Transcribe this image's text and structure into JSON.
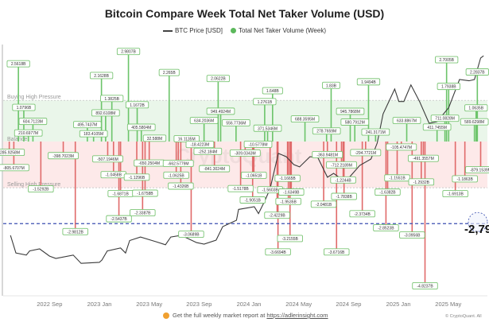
{
  "chart_data": {
    "type": "bar",
    "title": "Bitcoin Compare Week Total Net Taker Volume (USD)",
    "legend": [
      "BTC Price [USD]",
      "Total Net Taker Volume (Week)"
    ],
    "legend_placement": "top-center",
    "x_ticks": [
      "2022 Sep",
      "2023 Jan",
      "2023 May",
      "2023 Sep",
      "2024 Jan",
      "2024 May",
      "2024 Sep",
      "2025 Jan",
      "2025 May"
    ],
    "zones": {
      "buying": "Buying High Pressure",
      "balance": "Balance",
      "selling": "Selling High Pressure",
      "buying_threshold_b": 1.4,
      "selling_threshold_b": -1.57
    },
    "reference_line_b": -2.79,
    "reference_label": "-2,79",
    "colors": {
      "positive": "#6cc46a",
      "negative": "#e06a6a",
      "price": "#3a3a3a",
      "reference": "#3b4fb0",
      "buy_zone": "#eaf6ea",
      "sell_zone": "#fde9e9",
      "label_border": "#7cc576"
    },
    "watermark": "CryptoQuant",
    "volume_annotations": [
      {
        "date": "2022-05-24",
        "value": -0.2859,
        "label": "-285.9258M"
      },
      {
        "date": "2022-06-05",
        "value": -0.8057,
        "label": "-805.6707M"
      },
      {
        "date": "2022-06-16",
        "value": 2.5618,
        "label": "2.5618B"
      },
      {
        "date": "2022-06-29",
        "value": 1.0796,
        "label": "1.0796B"
      },
      {
        "date": "2022-07-10",
        "value": 0.2107,
        "label": "210.6977M"
      },
      {
        "date": "2022-07-21",
        "value": 0.6047,
        "label": "604.7123M"
      },
      {
        "date": "2022-08-10",
        "value": -1.5292,
        "label": "-1.5292B"
      },
      {
        "date": "2022-10-04",
        "value": -0.3987,
        "label": "-398.7023M"
      },
      {
        "date": "2022-11-03",
        "value": -2.9812,
        "label": "-2.9812B"
      },
      {
        "date": "2022-12-02",
        "value": 0.4957,
        "label": "495.7437M"
      },
      {
        "date": "2022-12-17",
        "value": 0.1834,
        "label": "183.4105M"
      },
      {
        "date": "2023-01-06",
        "value": 2.1628,
        "label": "2.1628B"
      },
      {
        "date": "2023-01-16",
        "value": 0.8926,
        "label": "892.6108M"
      },
      {
        "date": "2023-01-21",
        "value": -0.5072,
        "label": "-507.1946M"
      },
      {
        "date": "2023-02-01",
        "value": 1.3825,
        "label": "1.3825B"
      },
      {
        "date": "2023-02-05",
        "value": -1.0458,
        "label": "-1.0458B"
      },
      {
        "date": "2023-02-18",
        "value": -2.5437,
        "label": "-2.5437B"
      },
      {
        "date": "2023-02-22",
        "value": -1.6871,
        "label": "-1.6871B"
      },
      {
        "date": "2023-03-11",
        "value": 2.9807,
        "label": "2.9807B"
      },
      {
        "date": "2023-04-01",
        "value": -1.1296,
        "label": "-1.1296B"
      },
      {
        "date": "2023-04-02",
        "value": 1.1672,
        "label": "1.1672B"
      },
      {
        "date": "2023-04-12",
        "value": 0.4056,
        "label": "405.5804M"
      },
      {
        "date": "2023-04-15",
        "value": -2.3387,
        "label": "-2.3387B"
      },
      {
        "date": "2023-04-21",
        "value": -1.6758,
        "label": "-1.6758B"
      },
      {
        "date": "2023-05-01",
        "value": -0.6503,
        "label": "-650.2504M"
      },
      {
        "date": "2023-05-14",
        "value": 0.0326,
        "label": "32.588M"
      },
      {
        "date": "2023-06-19",
        "value": 2.265,
        "label": "2.265B"
      },
      {
        "date": "2023-07-06",
        "value": -1.0625,
        "label": "-1.0625B"
      },
      {
        "date": "2023-07-11",
        "value": -0.6626,
        "label": "-662.5779M"
      },
      {
        "date": "2023-07-17",
        "value": -1.4326,
        "label": "-1.4326B"
      },
      {
        "date": "2023-08-01",
        "value": 0.0161,
        "label": "16.1135M"
      },
      {
        "date": "2023-08-12",
        "value": -3.0689,
        "label": "-3.0689B"
      },
      {
        "date": "2023-09-03",
        "value": -0.0184,
        "label": "-18.4223M"
      },
      {
        "date": "2023-09-13",
        "value": 0.6342,
        "label": "634.2036M"
      },
      {
        "date": "2023-09-22",
        "value": -0.2522,
        "label": "-252.184M"
      },
      {
        "date": "2023-10-08",
        "value": -0.8413,
        "label": "-841.3024M"
      },
      {
        "date": "2023-10-17",
        "value": 2.0622,
        "label": "2.0622B"
      },
      {
        "date": "2023-10-23",
        "value": 0.9495,
        "label": "949.4924M"
      },
      {
        "date": "2023-11-30",
        "value": 0.5568,
        "label": "556.7736M"
      },
      {
        "date": "2023-12-11",
        "value": -1.5178,
        "label": "-1.5178B"
      },
      {
        "date": "2023-12-22",
        "value": -0.309,
        "label": "-309.0343M"
      },
      {
        "date": "2024-01-10",
        "value": -1.9051,
        "label": "-1.9051B"
      },
      {
        "date": "2024-01-13",
        "value": -1.0651,
        "label": "-1.0651B"
      },
      {
        "date": "2024-01-23",
        "value": -0.0106,
        "label": "-10.5778M"
      },
      {
        "date": "2024-02-09",
        "value": 1.2761,
        "label": "1.2761B"
      },
      {
        "date": "2024-02-16",
        "value": 0.3715,
        "label": "371.5346M"
      },
      {
        "date": "2024-02-22",
        "value": -1.5603,
        "label": "-1.5603B"
      },
      {
        "date": "2024-02-28",
        "value": 1.648,
        "label": "1.648B"
      },
      {
        "date": "2024-03-09",
        "value": -2.4229,
        "label": "-2.4229B"
      },
      {
        "date": "2024-03-11",
        "value": -3.6694,
        "label": "-3.6694B"
      },
      {
        "date": "2024-04-04",
        "value": -1.1665,
        "label": "-1.1665B"
      },
      {
        "date": "2024-04-06",
        "value": -1.9535,
        "label": "-1.9535B"
      },
      {
        "date": "2024-04-10",
        "value": -3.2155,
        "label": "-3.2155B"
      },
      {
        "date": "2024-04-13",
        "value": -1.6349,
        "label": "-1.6349B"
      },
      {
        "date": "2024-05-16",
        "value": 0.6884,
        "label": "688.3595M"
      },
      {
        "date": "2024-07-01",
        "value": -2.0481,
        "label": "-2.0481B"
      },
      {
        "date": "2024-07-08",
        "value": 0.2788,
        "label": "278.7659M"
      },
      {
        "date": "2024-07-10",
        "value": -0.3639,
        "label": "-363.9481M"
      },
      {
        "date": "2024-07-19",
        "value": 1.83,
        "label": "1.83B"
      },
      {
        "date": "2024-08-02",
        "value": -3.6716,
        "label": "-3.6716B"
      },
      {
        "date": "2024-08-14",
        "value": -0.7122,
        "label": "-712.2189M"
      },
      {
        "date": "2024-08-18",
        "value": -1.2244,
        "label": "-1.2244B"
      },
      {
        "date": "2024-08-20",
        "value": -1.7838,
        "label": "-1.7838B"
      },
      {
        "date": "2024-09-05",
        "value": 0.9458,
        "label": "945.7868M"
      },
      {
        "date": "2024-09-16",
        "value": 0.5808,
        "label": "580.7912M"
      },
      {
        "date": "2024-10-04",
        "value": -2.3734,
        "label": "-2.3734B"
      },
      {
        "date": "2024-10-12",
        "value": -0.2948,
        "label": "-294.7721M"
      },
      {
        "date": "2024-10-19",
        "value": 1.9494,
        "label": "1.9494B"
      },
      {
        "date": "2024-11-06",
        "value": 0.2413,
        "label": "241.3171M"
      },
      {
        "date": "2024-12-01",
        "value": -2.8523,
        "label": "-2.8523B"
      },
      {
        "date": "2024-12-05",
        "value": -1.6382,
        "label": "-1.6382B"
      },
      {
        "date": "2024-12-28",
        "value": -1.1551,
        "label": "-1.1551B"
      },
      {
        "date": "2025-01-08",
        "value": -0.1055,
        "label": "-105.4747M"
      },
      {
        "date": "2025-01-21",
        "value": 0.6339,
        "label": "633.8867M"
      },
      {
        "date": "2025-02-04",
        "value": -3.0956,
        "label": "-3.0956B"
      },
      {
        "date": "2025-02-26",
        "value": -1.2932,
        "label": "-1.2932B"
      },
      {
        "date": "2025-03-01",
        "value": -0.4914,
        "label": "-491.3557M"
      },
      {
        "date": "2025-03-05",
        "value": -4.8237,
        "label": "-4.8237B"
      },
      {
        "date": "2025-04-04",
        "value": 0.4117,
        "label": "411.7455M"
      },
      {
        "date": "2025-04-23",
        "value": 0.7111,
        "label": "711.0828M"
      },
      {
        "date": "2025-04-27",
        "value": 2.7005,
        "label": "2.7005B"
      },
      {
        "date": "2025-05-02",
        "value": 1.7938,
        "label": "1.7938B"
      },
      {
        "date": "2025-05-18",
        "value": -1.6913,
        "label": "-1.6913B"
      },
      {
        "date": "2025-06-11",
        "value": -1.1863,
        "label": "-1.1863B"
      },
      {
        "date": "2025-07-04",
        "value": 0.5896,
        "label": "589.6298M"
      },
      {
        "date": "2025-07-08",
        "value": 1.0635,
        "label": "1.0635B"
      },
      {
        "date": "2025-07-11",
        "value": 2.2837,
        "label": "2.2837B"
      },
      {
        "date": "2025-07-19",
        "value": -0.8792,
        "label": "-879.1539M"
      }
    ],
    "btc_price_k_usd": [
      [
        "2022-05-27",
        29.5
      ],
      [
        "2022-06-10",
        21
      ],
      [
        "2022-07-05",
        20
      ],
      [
        "2022-07-13",
        22
      ],
      [
        "2022-08-07",
        23
      ],
      [
        "2022-08-31",
        19.5
      ],
      [
        "2022-09-16",
        18.4
      ],
      [
        "2022-10-28",
        20
      ],
      [
        "2022-11-17",
        16
      ],
      [
        "2023-01-01",
        16.5
      ],
      [
        "2023-01-07",
        17.6
      ],
      [
        "2023-01-20",
        22
      ],
      [
        "2023-02-22",
        23.4
      ],
      [
        "2023-03-04",
        21
      ],
      [
        "2023-03-14",
        27
      ],
      [
        "2023-04-10",
        28.7
      ],
      [
        "2023-05-18",
        26.4
      ],
      [
        "2023-06-10",
        25
      ],
      [
        "2023-06-23",
        28.7
      ],
      [
        "2023-07-18",
        29.5
      ],
      [
        "2023-08-25",
        26
      ],
      [
        "2023-09-13",
        25.3
      ],
      [
        "2023-10-12",
        27.2
      ],
      [
        "2023-10-28",
        33.7
      ],
      [
        "2023-12-01",
        36.8
      ],
      [
        "2023-12-06",
        42
      ],
      [
        "2024-01-14",
        43.3
      ],
      [
        "2024-01-24",
        40
      ],
      [
        "2024-02-09",
        46
      ],
      [
        "2024-02-22",
        52
      ],
      [
        "2024-03-12",
        69
      ],
      [
        "2024-04-01",
        67.4
      ],
      [
        "2024-04-19",
        63.6
      ],
      [
        "2024-05-03",
        62.5
      ],
      [
        "2024-05-28",
        67.4
      ],
      [
        "2024-06-17",
        67
      ],
      [
        "2024-07-10",
        57.5
      ],
      [
        "2024-07-25",
        59.4
      ],
      [
        "2024-08-08",
        57.5
      ],
      [
        "2024-09-03",
        57.5
      ],
      [
        "2024-09-28",
        63.2
      ],
      [
        "2024-10-25",
        66.3
      ],
      [
        "2024-11-10",
        74
      ],
      [
        "2024-11-24",
        88
      ],
      [
        "2024-12-22",
        100
      ],
      [
        "2025-01-02",
        94
      ],
      [
        "2025-01-14",
        94
      ],
      [
        "2025-02-01",
        102
      ],
      [
        "2025-02-22",
        94
      ],
      [
        "2025-03-15",
        83.5
      ],
      [
        "2025-04-04",
        84.3
      ],
      [
        "2025-05-02",
        91
      ],
      [
        "2025-05-28",
        104.6
      ],
      [
        "2025-06-21",
        104
      ],
      [
        "2025-07-04",
        104.6
      ],
      [
        "2025-07-19",
        115
      ],
      [
        "2025-07-26",
        116
      ]
    ]
  },
  "footer": {
    "message": "Get the full weekly market report at",
    "link": "https://adlerinsight.com",
    "copyright": "© CryptoQuant. All"
  }
}
